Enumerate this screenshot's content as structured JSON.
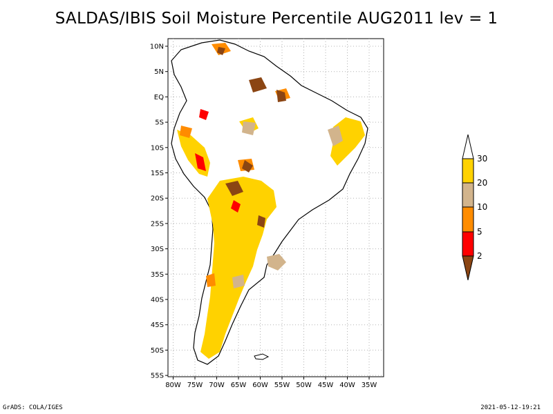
{
  "title": "SALDAS/IBIS Soil Moisture Percentile AUG2011 lev = 1",
  "footer": {
    "left": "GrADS: COLA/IGES",
    "right": "2021-05-12-19:21"
  },
  "axes": {
    "lat_ticks": [
      "10N",
      "5N",
      "EQ",
      "5S",
      "10S",
      "15S",
      "20S",
      "25S",
      "30S",
      "35S",
      "40S",
      "45S",
      "50S",
      "55S"
    ],
    "lon_ticks": [
      "80W",
      "75W",
      "70W",
      "65W",
      "60W",
      "55W",
      "50W",
      "45W",
      "40W",
      "35W"
    ]
  },
  "legend": {
    "labels": [
      "30",
      "20",
      "10",
      "5",
      "2"
    ],
    "colors": {
      "top": "#ffffff",
      "c20_30": "#ffd200",
      "c10_20": "#d2b48c",
      "c5_10": "#ff8c00",
      "c2_5": "#ff0000",
      "below2": "#8b4513"
    }
  }
}
